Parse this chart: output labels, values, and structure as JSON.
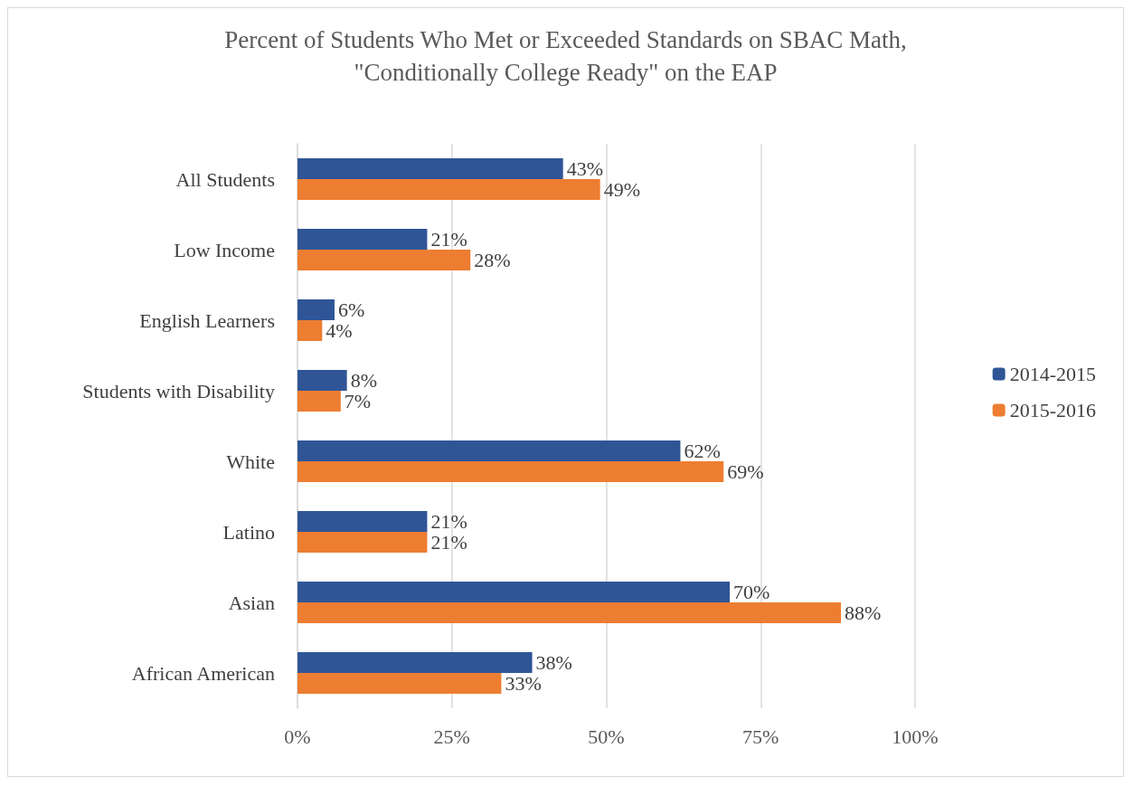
{
  "chart_data": {
    "type": "bar",
    "orientation": "horizontal",
    "title": "Percent of Students Who Met or Exceeded Standards on SBAC Math,\n\"Conditionally College Ready\" on the EAP",
    "categories": [
      "All Students",
      "Low Income",
      "English Learners",
      "Students with Disability",
      "White",
      "Latino",
      "Asian",
      "African American"
    ],
    "series": [
      {
        "name": "2014-2015",
        "color": "#2f5597",
        "values": [
          43,
          21,
          6,
          8,
          62,
          21,
          70,
          38
        ],
        "value_labels": [
          "43%",
          "21%",
          "6%",
          "8%",
          "62%",
          "21%",
          "70%",
          "38%"
        ]
      },
      {
        "name": "2015-2016",
        "color": "#ed7d31",
        "values": [
          49,
          28,
          4,
          7,
          69,
          21,
          88,
          33
        ],
        "value_labels": [
          "49%",
          "28%",
          "4%",
          "7%",
          "69%",
          "21%",
          "88%",
          "33%"
        ]
      }
    ],
    "xlim": [
      0,
      100
    ],
    "xticks": [
      {
        "value": 0,
        "label": "0%"
      },
      {
        "value": 25,
        "label": "25%"
      },
      {
        "value": 50,
        "label": "50%"
      },
      {
        "value": 75,
        "label": "75%"
      },
      {
        "value": 100,
        "label": "100%"
      }
    ],
    "grid": "x",
    "legend": "right"
  }
}
